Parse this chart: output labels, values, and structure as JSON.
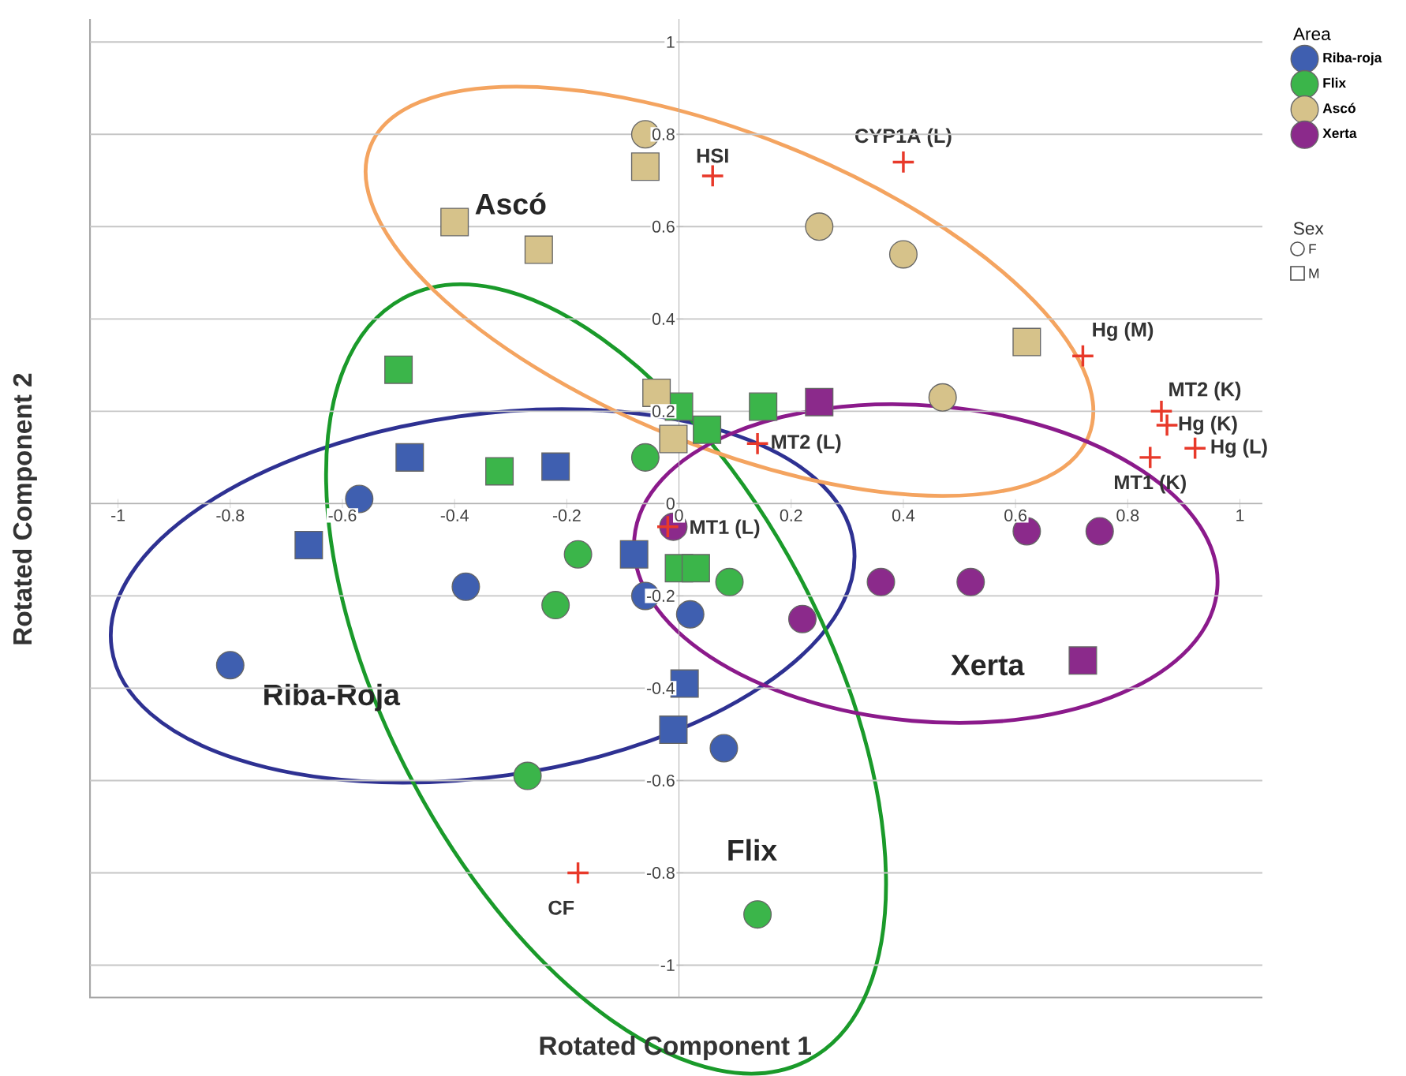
{
  "chart_data": {
    "type": "scatter",
    "xlabel": "Rotated Component 1",
    "ylabel": "Rotated Component 2",
    "legend_title": "Area",
    "legend": "right",
    "grid": "y",
    "xlim": [
      -1.05,
      1.04
    ],
    "ylim": [
      -1.07,
      1.05
    ],
    "xticks": [
      -1,
      -0.8,
      -0.6,
      -0.4,
      -0.2,
      0,
      0.2,
      0.4,
      0.6,
      0.8,
      1
    ],
    "yticks": [
      -1,
      -0.8,
      -0.6,
      -0.4,
      -0.2,
      0,
      0.2,
      0.4,
      0.6,
      0.8,
      1
    ],
    "series": [
      {
        "name": "Riba-roja",
        "color": "#3f5fb0",
        "marker": "circle",
        "x": [
          -0.8,
          -0.57,
          -0.38,
          -0.06,
          0.02,
          0.08
        ],
        "values": [
          -0.35,
          0.01,
          -0.18,
          -0.2,
          -0.24,
          -0.53
        ]
      },
      {
        "name": "Flix",
        "color": "#3bb54a",
        "marker": "circle",
        "x": [
          -0.18,
          -0.22,
          -0.27,
          0.14,
          0.09,
          -0.06
        ],
        "values": [
          -0.11,
          -0.22,
          -0.59,
          -0.89,
          -0.17,
          0.1
        ]
      },
      {
        "name": "Ascó",
        "color": "#d6c28a",
        "marker": "circle",
        "x": [
          -0.06,
          0.25,
          0.4,
          0.47
        ],
        "values": [
          0.8,
          0.6,
          0.54,
          0.23
        ]
      },
      {
        "name": "Xerta",
        "color": "#8b2a8b",
        "marker": "circle",
        "x": [
          -0.01,
          0.62,
          0.75,
          0.36,
          0.52,
          0.22
        ],
        "values": [
          -0.05,
          -0.06,
          -0.06,
          -0.17,
          -0.17,
          -0.25
        ]
      },
      {
        "color": "#3f5fb0",
        "marker": "square",
        "x": [
          -0.48,
          -0.22,
          -0.66,
          -0.08,
          0.01,
          -0.01
        ],
        "values": [
          0.1,
          0.08,
          -0.09,
          -0.11,
          -0.39,
          -0.49
        ]
      },
      {
        "color": "#3bb54a",
        "marker": "square",
        "x": [
          -0.5,
          -0.32,
          0.0,
          0.03,
          0.0,
          0.05,
          0.15
        ],
        "values": [
          0.29,
          0.07,
          -0.14,
          -0.14,
          0.21,
          0.16,
          0.21
        ]
      },
      {
        "color": "#d6c28a",
        "marker": "square",
        "x": [
          -0.4,
          -0.25,
          -0.06,
          -0.04,
          0.62,
          -0.01
        ],
        "values": [
          0.61,
          0.55,
          0.73,
          0.24,
          0.35,
          0.14
        ]
      },
      {
        "color": "#8b2a8b",
        "marker": "square",
        "x": [
          0.72,
          0.25
        ],
        "values": [
          -0.34,
          0.22
        ]
      },
      {
        "color": "#e8392a",
        "marker": "cross",
        "x": [
          0.06,
          0.4,
          0.72,
          0.86,
          0.87,
          0.92,
          0.84,
          0.14,
          -0.02,
          -0.18
        ],
        "values": [
          0.71,
          0.74,
          0.32,
          0.2,
          0.17,
          0.12,
          0.1,
          0.13,
          -0.05,
          -0.8
        ],
        "value_labels": [
          "HSI",
          "CYP1A (L)",
          "Hg (M)",
          "MT2 (K)",
          "Hg (K)",
          "Hg (L)",
          "MT1 (K)",
          "MT2 (L)",
          "MT1 (L)",
          "CF"
        ]
      }
    ],
    "annotations": [
      "Sex",
      "F",
      "M",
      "Riba-Roja",
      "Flix",
      "Ascó",
      "Xerta"
    ]
  }
}
